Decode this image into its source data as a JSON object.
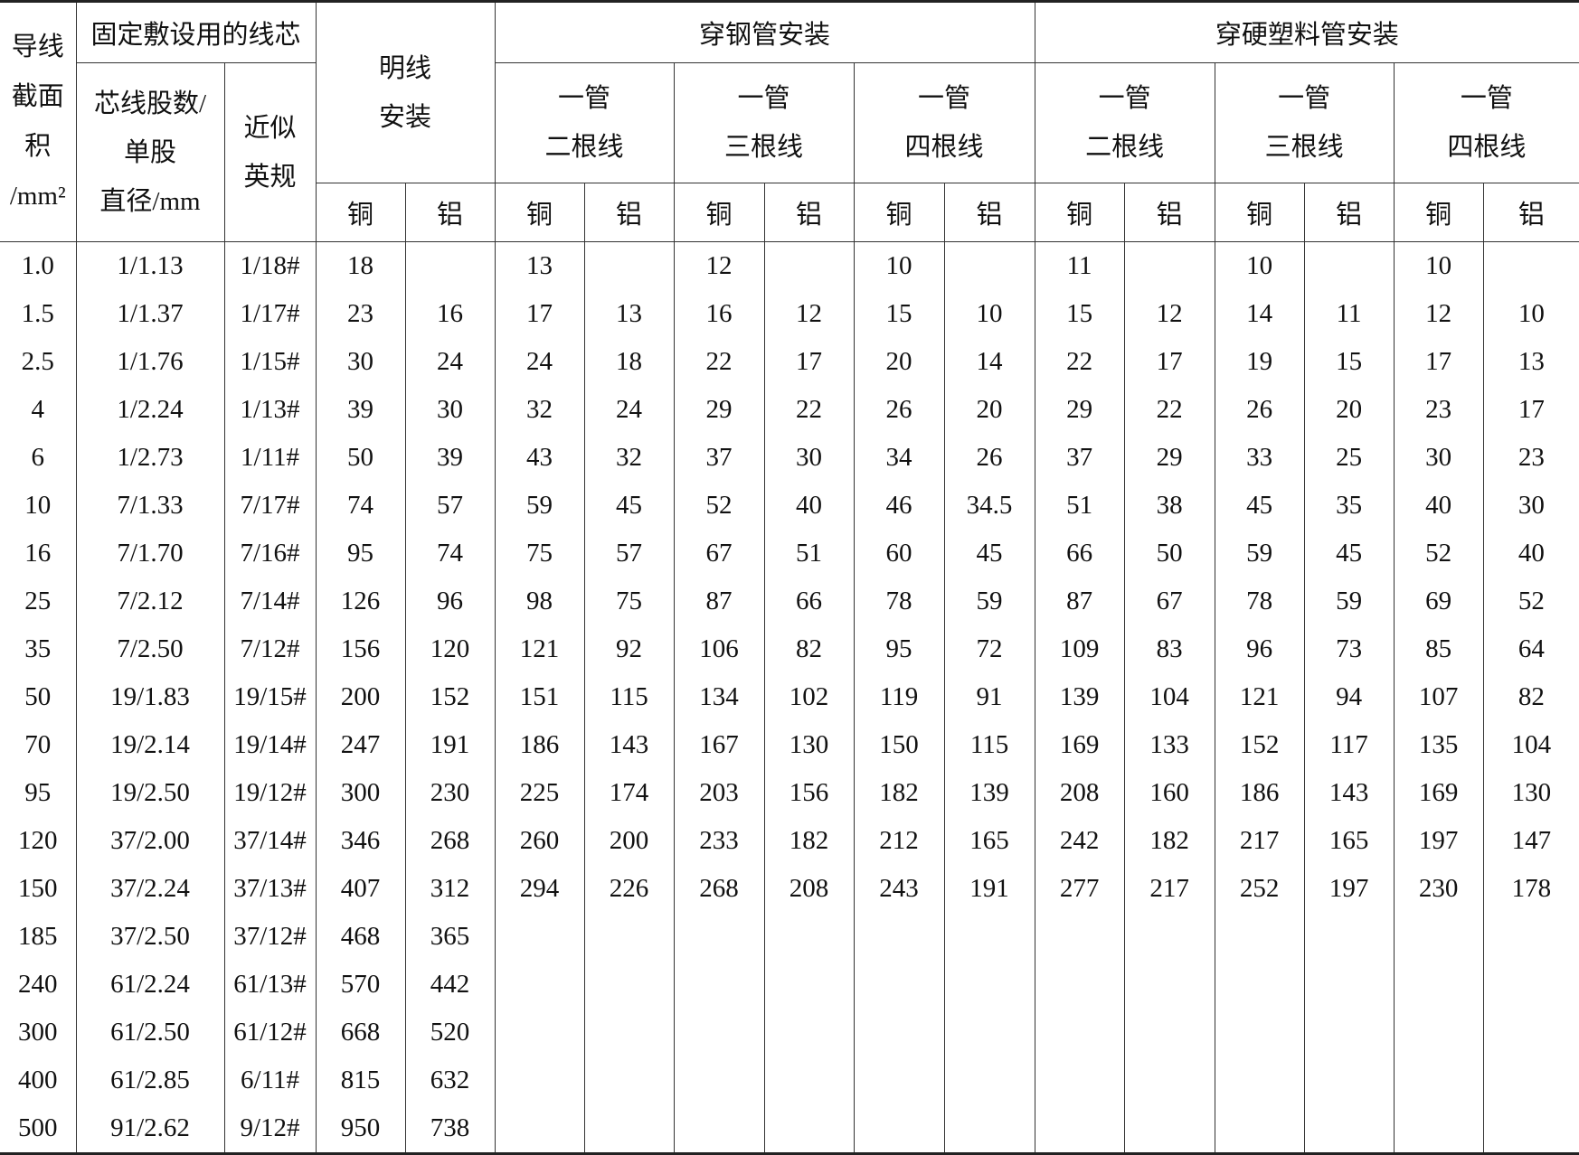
{
  "header": {
    "section": [
      "导线",
      "截面",
      "积",
      "/mm²"
    ],
    "fixed": "固定敷设用的线芯",
    "strands": [
      "芯线股数/",
      "单股",
      "直径/mm"
    ],
    "imperial": [
      "近似",
      "英规"
    ],
    "open": [
      "明线",
      "安装"
    ],
    "steel": "穿钢管安装",
    "plastic": "穿硬塑料管安装",
    "pipes": [
      [
        "一管",
        "二根线"
      ],
      [
        "一管",
        "三根线"
      ],
      [
        "一管",
        "四根线"
      ]
    ],
    "cu": "铜",
    "al": "铝"
  },
  "table": {
    "rows": [
      [
        "1.0",
        "1/1.13",
        "1/18#",
        18,
        null,
        13,
        null,
        12,
        null,
        10,
        null,
        11,
        null,
        10,
        null,
        10,
        null
      ],
      [
        "1.5",
        "1/1.37",
        "1/17#",
        23,
        16,
        17,
        13,
        16,
        12,
        15,
        10,
        15,
        12,
        14,
        11,
        12,
        10
      ],
      [
        "2.5",
        "1/1.76",
        "1/15#",
        30,
        24,
        24,
        18,
        22,
        17,
        20,
        14,
        22,
        17,
        19,
        15,
        17,
        13
      ],
      [
        "4",
        "1/2.24",
        "1/13#",
        39,
        30,
        32,
        24,
        29,
        22,
        26,
        20,
        29,
        22,
        26,
        20,
        23,
        17
      ],
      [
        "6",
        "1/2.73",
        "1/11#",
        50,
        39,
        43,
        32,
        37,
        30,
        34,
        26,
        37,
        29,
        33,
        25,
        30,
        23
      ],
      [
        "10",
        "7/1.33",
        "7/17#",
        74,
        57,
        59,
        45,
        52,
        40,
        46,
        34.5,
        51,
        38,
        45,
        35,
        40,
        30
      ],
      [
        "16",
        "7/1.70",
        "7/16#",
        95,
        74,
        75,
        57,
        67,
        51,
        60,
        45,
        66,
        50,
        59,
        45,
        52,
        40
      ],
      [
        "25",
        "7/2.12",
        "7/14#",
        126,
        96,
        98,
        75,
        87,
        66,
        78,
        59,
        87,
        67,
        78,
        59,
        69,
        52
      ],
      [
        "35",
        "7/2.50",
        "7/12#",
        156,
        120,
        121,
        92,
        106,
        82,
        95,
        72,
        109,
        83,
        96,
        73,
        85,
        64
      ],
      [
        "50",
        "19/1.83",
        "19/15#",
        200,
        152,
        151,
        115,
        134,
        102,
        119,
        91,
        139,
        104,
        121,
        94,
        107,
        82
      ],
      [
        "70",
        "19/2.14",
        "19/14#",
        247,
        191,
        186,
        143,
        167,
        130,
        150,
        115,
        169,
        133,
        152,
        117,
        135,
        104
      ],
      [
        "95",
        "19/2.50",
        "19/12#",
        300,
        230,
        225,
        174,
        203,
        156,
        182,
        139,
        208,
        160,
        186,
        143,
        169,
        130
      ],
      [
        "120",
        "37/2.00",
        "37/14#",
        346,
        268,
        260,
        200,
        233,
        182,
        212,
        165,
        242,
        182,
        217,
        165,
        197,
        147
      ],
      [
        "150",
        "37/2.24",
        "37/13#",
        407,
        312,
        294,
        226,
        268,
        208,
        243,
        191,
        277,
        217,
        252,
        197,
        230,
        178
      ],
      [
        "185",
        "37/2.50",
        "37/12#",
        468,
        365,
        null,
        null,
        null,
        null,
        null,
        null,
        null,
        null,
        null,
        null,
        null,
        null
      ],
      [
        "240",
        "61/2.24",
        "61/13#",
        570,
        442,
        null,
        null,
        null,
        null,
        null,
        null,
        null,
        null,
        null,
        null,
        null,
        null
      ],
      [
        "300",
        "61/2.50",
        "61/12#",
        668,
        520,
        null,
        null,
        null,
        null,
        null,
        null,
        null,
        null,
        null,
        null,
        null,
        null
      ],
      [
        "400",
        "61/2.85",
        "6/11#",
        815,
        632,
        null,
        null,
        null,
        null,
        null,
        null,
        null,
        null,
        null,
        null,
        null,
        null
      ],
      [
        "500",
        "91/2.62",
        "9/12#",
        950,
        738,
        null,
        null,
        null,
        null,
        null,
        null,
        null,
        null,
        null,
        null,
        null,
        null
      ]
    ]
  }
}
